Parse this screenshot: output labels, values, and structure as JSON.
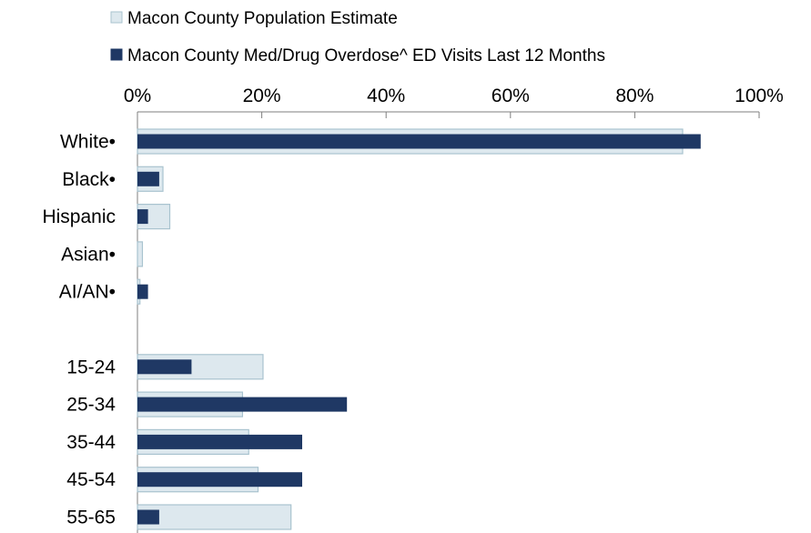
{
  "chart_data": {
    "type": "bar",
    "orientation": "horizontal",
    "title": "",
    "xlabel": "",
    "ylabel": "",
    "xlim": [
      0,
      100
    ],
    "x_ticks": [
      "0%",
      "20%",
      "40%",
      "60%",
      "80%",
      "100%"
    ],
    "x_tick_values": [
      0,
      20,
      40,
      60,
      80,
      100
    ],
    "legend_position": "top-left",
    "grid": false,
    "categories": [
      "White•",
      "Black•",
      "Hispanic",
      "Asian•",
      "AI/AN•",
      "",
      "15-24",
      "25-34",
      "35-44",
      "45-54",
      "55-65"
    ],
    "series": [
      {
        "name": "Macon County Population Estimate",
        "color": "#dde8ee",
        "border": "#a9c3cf",
        "values": [
          87.7,
          4.1,
          5.2,
          0.8,
          0.4,
          null,
          20.2,
          16.9,
          17.9,
          19.4,
          24.7
        ]
      },
      {
        "name": "Macon County Med/Drug Overdose^ ED Visits Last 12 Months",
        "color": "#1f3864",
        "values": [
          90.6,
          3.5,
          1.7,
          0,
          1.7,
          null,
          8.7,
          33.7,
          26.5,
          26.5,
          3.5
        ]
      }
    ]
  }
}
